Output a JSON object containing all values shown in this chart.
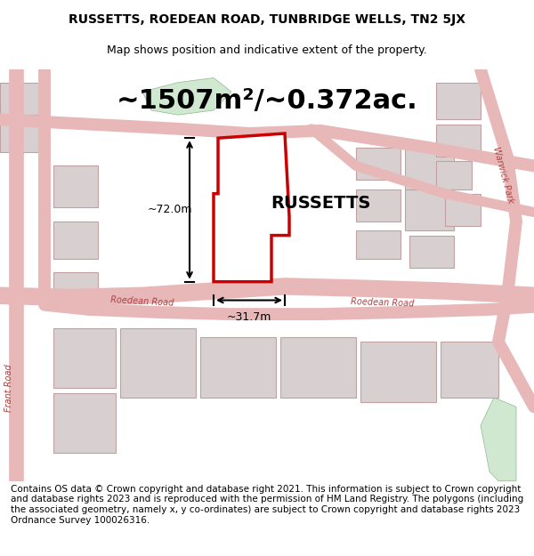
{
  "title_line1": "RUSSETTS, ROEDEAN ROAD, TUNBRIDGE WELLS, TN2 5JX",
  "title_line2": "Map shows position and indicative extent of the property.",
  "area_text": "~1507m²/~0.372ac.",
  "property_label": "RUSSETTS",
  "dim_height": "~72.0m",
  "dim_width": "~31.7m",
  "road_label_1": "Roedean Road",
  "road_label_2": "Roedean Road",
  "road_label_left": "Frant Road",
  "road_label_right": "Warwick Park",
  "footer_text": "Contains OS data © Crown copyright and database right 2021. This information is subject to Crown copyright and database rights 2023 and is reproduced with the permission of HM Land Registry. The polygons (including the associated geometry, namely x, y co-ordinates) are subject to Crown copyright and database rights 2023 Ordnance Survey 100026316.",
  "bg_color": "#f5f0f0",
  "map_bg": "#f0eaea",
  "property_fill": "#ffffff",
  "property_edge": "#cc0000",
  "road_color": "#e8b8b8",
  "building_fill": "#d8d0d0",
  "building_edge": "#c0a0a0",
  "green_fill": "#d0e8d0",
  "title_fontsize": 10,
  "subtitle_fontsize": 9,
  "area_fontsize": 22,
  "label_fontsize": 14,
  "footer_fontsize": 7.5
}
